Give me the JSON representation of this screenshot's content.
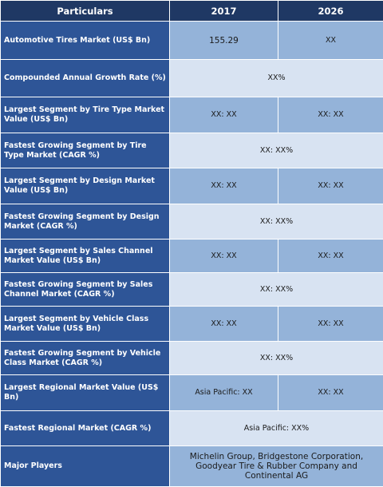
{
  "header": {
    "particulars": "Particulars",
    "year1": "2017",
    "year2": "2026"
  },
  "rows": [
    {
      "label": "Automotive Tires Market (US$ Bn)",
      "v1": "155.29",
      "v2": "XX"
    },
    {
      "label": "Compounded Annual Growth Rate (%)",
      "merged": "XX%"
    },
    {
      "label": "Largest Segment by Tire Type Market Value (US$ Bn)",
      "v1": "XX: XX",
      "v2": "XX: XX"
    },
    {
      "label": "Fastest Growing Segment by Tire Type Market (CAGR %)",
      "merged": "XX: XX%"
    },
    {
      "label": "Largest Segment by Design Market Value (US$ Bn)",
      "v1": "XX: XX",
      "v2": "XX: XX"
    },
    {
      "label": "Fastest Growing Segment by Design Market (CAGR %)",
      "merged": "XX: XX%"
    },
    {
      "label": "Largest Segment by Sales Channel Market Value (US$ Bn)",
      "v1": "XX: XX",
      "v2": "XX: XX"
    },
    {
      "label": "Fastest Growing Segment by Sales Channel Market (CAGR %)",
      "merged": "XX: XX%"
    },
    {
      "label": "Largest Segment by Vehicle Class Market Value (US$ Bn)",
      "v1": "XX: XX",
      "v2": "XX: XX"
    },
    {
      "label": "Fastest Growing Segment by Vehicle Class Market (CAGR %)",
      "merged": "XX: XX%"
    },
    {
      "label": "Largest Regional Market Value (US$ Bn)",
      "v1": "Asia Pacific: XX",
      "v2": "XX: XX"
    },
    {
      "label": "Fastest Regional Market (CAGR %)",
      "merged": "Asia Pacific: XX%"
    },
    {
      "label": "Major Players",
      "merged": "Michelin Group, Bridgestone Corporation, Goodyear Tire & Rubber Company and Continental AG"
    }
  ],
  "colors": {
    "header_bg": "#1f3864",
    "label_bg": "#2e5597",
    "value_bg_dark": "#94b3d9",
    "value_bg_light": "#d8e3f2"
  }
}
